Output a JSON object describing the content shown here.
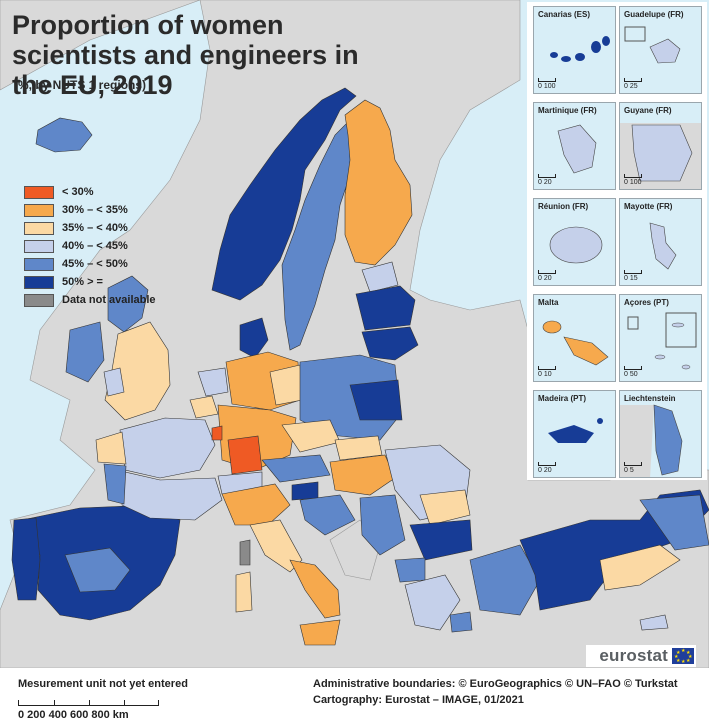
{
  "title": "Proportion of women scientists and engineers in the EU, 2019",
  "subtitle": "(%, by NUTS 1 regions)",
  "legend": [
    {
      "label": "< 30%",
      "color": "#ef5a24"
    },
    {
      "label": "30% – < 35%",
      "color": "#f6a94d"
    },
    {
      "label": "35% – < 40%",
      "color": "#fbd9a4"
    },
    {
      "label": "40% – < 45%",
      "color": "#c5d0ea"
    },
    {
      "label": "45% – < 50%",
      "color": "#5f87c9"
    },
    {
      "label": "50% > =",
      "color": "#173c96"
    },
    {
      "label": "Data not available",
      "color": "#8a8a8a"
    }
  ],
  "colors": {
    "sea": "#d8eef7",
    "non_eu": "#d9d9d9",
    "border": "#333333"
  },
  "insets": [
    {
      "title": "Canarias (ES)",
      "scale": "0  100",
      "color": "#173c96"
    },
    {
      "title": "Guadelupe (FR)",
      "scale": "0  25",
      "color": "#c5d0ea"
    },
    {
      "title": "Martinique (FR)",
      "scale": "0  20",
      "color": "#c5d0ea"
    },
    {
      "title": "Guyane (FR)",
      "scale": "0  100",
      "color": "#c5d0ea"
    },
    {
      "title": "Réunion (FR)",
      "scale": "0  20",
      "color": "#c5d0ea"
    },
    {
      "title": "Mayotte (FR)",
      "scale": "0  15",
      "color": "#c5d0ea"
    },
    {
      "title": "Malta",
      "scale": "0  10",
      "color": "#f6a94d"
    },
    {
      "title": "Açores (PT)",
      "scale": "0  50",
      "color": "#c5d0ea"
    },
    {
      "title": "Madeira (PT)",
      "scale": "0  20",
      "color": "#173c96"
    },
    {
      "title": "Liechtenstein",
      "scale": "0  5",
      "color": "#5f87c9"
    }
  ],
  "logo": {
    "text": "eurostat",
    "flag_icon": "eu-flag-icon"
  },
  "footer": {
    "unit_note": "Mesurement unit not yet entered",
    "scale_labels": "0   200  400  600  800 km",
    "credits_line1": "Administrative boundaries: © EuroGeographics © UN–FAO © Turkstat",
    "credits_line2": "Cartography: Eurostat – IMAGE, 01/2021"
  }
}
